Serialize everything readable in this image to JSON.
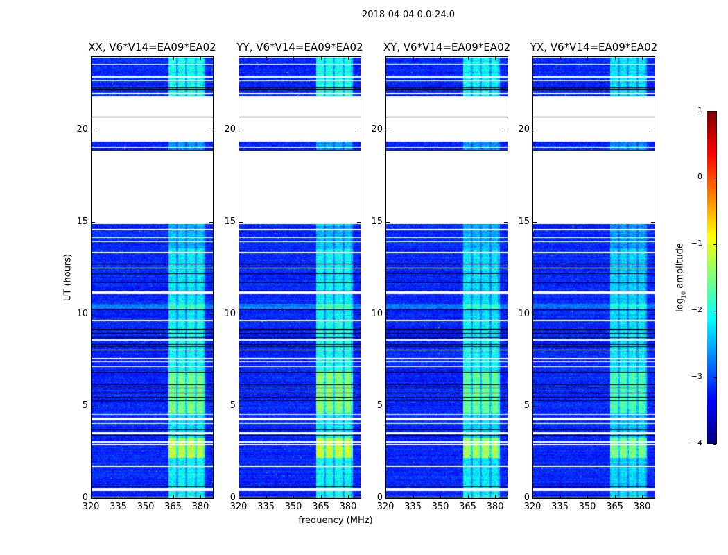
{
  "chart_data": {
    "type": "heatmap",
    "title": "2018-04-04 0.0-24.0",
    "xlabel": "frequency (MHz)",
    "ylabel": "UT (hours)",
    "xlim": [
      320,
      387.2
    ],
    "ylim": [
      0,
      24
    ],
    "xticks": [
      320,
      335,
      350,
      365,
      380
    ],
    "xtick_labels": [
      "320",
      "335",
      "350",
      "365",
      "380"
    ],
    "yticks": [
      0,
      5,
      10,
      15,
      20
    ],
    "ytick_labels": [
      "0",
      "5",
      "10",
      "15",
      "20"
    ],
    "panels": [
      {
        "title": "XX, V6*V14=EA09*EA02",
        "band_scale": 1.0
      },
      {
        "title": "YY, V6*V14=EA09*EA02",
        "band_scale": 1.05
      },
      {
        "title": "XY, V6*V14=EA09*EA02",
        "band_scale": 0.95
      },
      {
        "title": "YX, V6*V14=EA09*EA02",
        "band_scale": 0.85
      }
    ],
    "colorbar": {
      "label": "log10 amplitude",
      "label_main": "log",
      "label_sub": "10",
      "label_rest": " amplitude",
      "range": [
        -4,
        1
      ],
      "ticks": [
        1,
        0,
        -1,
        -2,
        -3,
        -4
      ],
      "tick_labels": [
        "1",
        "0",
        "−1",
        "−2",
        "−3",
        "−4"
      ],
      "colormap": "jet"
    },
    "background_log_amplitude": -3.2,
    "rfi_band_mhz": [
      362.5,
      383
    ],
    "rfi_subband_edges_mhz": [
      367.5,
      372.4,
      377.7
    ],
    "rfi_band_levels": [
      {
        "t": [
          0,
          0.6
        ],
        "boost": 1.3
      },
      {
        "t": [
          0.6,
          2.2
        ],
        "boost": 1.2
      },
      {
        "t": [
          2.2,
          3.3
        ],
        "boost": 2.3
      },
      {
        "t": [
          3.3,
          4.6
        ],
        "boost": 1.1
      },
      {
        "t": [
          4.6,
          6.9
        ],
        "boost": 1.9
      },
      {
        "t": [
          6.9,
          9.7
        ],
        "boost": 1.3
      },
      {
        "t": [
          9.7,
          13.6
        ],
        "boost": 1.15
      },
      {
        "t": [
          13.6,
          15
        ],
        "boost": 0.8
      },
      {
        "t": [
          18.9,
          20.2
        ],
        "boost": 0.7
      },
      {
        "t": [
          21.8,
          24
        ],
        "boost": 1.3
      }
    ],
    "flagged_intervals_hours": [
      [
        0.05,
        0.09
      ],
      [
        0.38,
        0.53
      ],
      [
        1.7,
        1.76
      ],
      [
        2.88,
        2.93
      ],
      [
        3.03,
        3.08
      ],
      [
        3.46,
        3.6
      ],
      [
        4.04,
        4.09
      ],
      [
        4.21,
        4.36
      ],
      [
        4.53,
        4.58
      ],
      [
        7.12,
        7.17
      ],
      [
        7.38,
        7.43
      ],
      [
        7.55,
        7.62
      ],
      [
        8.03,
        8.08
      ],
      [
        8.58,
        8.63
      ],
      [
        9.64,
        9.69
      ],
      [
        11.1,
        11.25
      ],
      [
        12.48,
        12.53
      ],
      [
        13.33,
        13.38
      ],
      [
        13.93,
        13.98
      ],
      [
        14.15,
        14.2
      ],
      [
        14.58,
        14.63
      ],
      [
        14.9,
        18.9
      ],
      [
        19.05,
        19.1
      ],
      [
        19.4,
        19.95
      ],
      [
        20.0,
        20.02
      ],
      [
        19.98,
        20.15
      ],
      [
        20.15,
        20.72
      ],
      [
        20.75,
        21.85
      ],
      [
        21.98,
        22.03
      ],
      [
        22.68,
        22.73
      ],
      [
        22.88,
        22.93
      ],
      [
        23.58,
        23.63
      ],
      [
        23.96,
        24
      ]
    ],
    "low_rows_hours": [
      [
        0.6,
        0.65
      ],
      [
        3.4,
        3.44
      ],
      [
        3.7,
        3.74
      ],
      [
        5.28,
        5.32
      ],
      [
        5.48,
        5.52
      ],
      [
        5.68,
        5.72
      ],
      [
        5.96,
        6.0
      ],
      [
        6.15,
        6.2
      ],
      [
        6.83,
        6.88
      ],
      [
        8.21,
        8.25
      ],
      [
        8.33,
        8.37
      ],
      [
        8.7,
        8.74
      ],
      [
        8.96,
        9.0
      ],
      [
        9.15,
        9.2
      ],
      [
        10.24,
        10.28
      ],
      [
        11.26,
        11.3
      ],
      [
        11.68,
        11.72
      ],
      [
        12.18,
        12.22
      ],
      [
        12.73,
        12.77
      ],
      [
        18.9,
        18.94
      ],
      [
        19.95,
        19.98
      ],
      [
        20.72,
        20.75
      ],
      [
        22.2,
        22.25
      ],
      [
        22.3,
        22.34
      ]
    ],
    "elevated_rows_hours": [
      [
        10.3,
        10.55
      ]
    ]
  }
}
